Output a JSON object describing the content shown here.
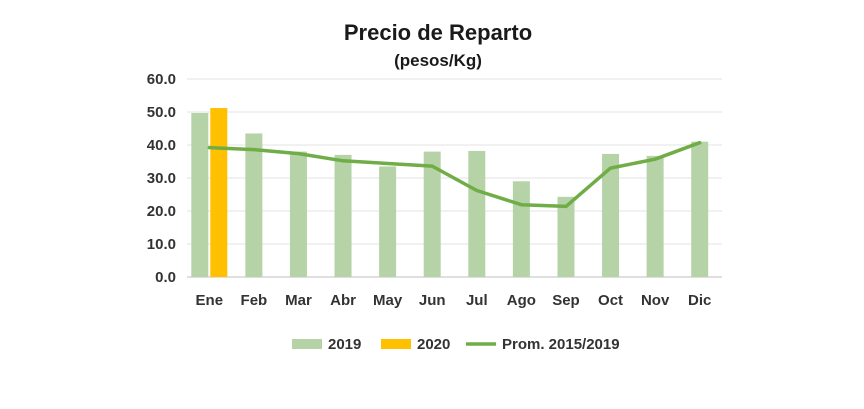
{
  "chart_data": {
    "type": "bar",
    "title": "Precio de Reparto",
    "subtitle": "(pesos/Kg)",
    "categories": [
      "Ene",
      "Feb",
      "Mar",
      "Abr",
      "May",
      "Jun",
      "Jul",
      "Ago",
      "Sep",
      "Oct",
      "Nov",
      "Dic"
    ],
    "yticks": [
      "0.0",
      "10.0",
      "20.0",
      "30.0",
      "40.0",
      "50.0",
      "60.0"
    ],
    "ylim": [
      0,
      60
    ],
    "grid": true,
    "legend_position": "bottom",
    "series": [
      {
        "name": "2019",
        "type": "bar",
        "color": "#b5d3a6",
        "values": [
          49.7,
          43.5,
          38.0,
          37.0,
          33.5,
          38.0,
          38.2,
          29.0,
          24.3,
          37.3,
          36.7,
          41.0
        ]
      },
      {
        "name": "2020",
        "type": "bar",
        "color": "#ffc000",
        "values": [
          51.2,
          null,
          null,
          null,
          null,
          null,
          null,
          null,
          null,
          null,
          null,
          null
        ]
      },
      {
        "name": "Prom. 2015/2019",
        "type": "line",
        "color": "#70ad47",
        "values": [
          39.2,
          38.6,
          37.4,
          35.2,
          34.4,
          33.6,
          26.2,
          21.9,
          21.4,
          33.0,
          35.7,
          40.7
        ]
      }
    ]
  }
}
